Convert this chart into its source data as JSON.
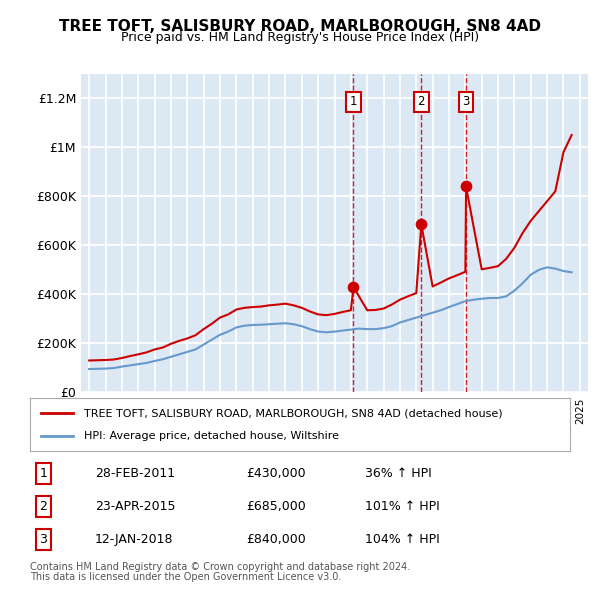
{
  "title": "TREE TOFT, SALISBURY ROAD, MARLBOROUGH, SN8 4AD",
  "subtitle": "Price paid vs. HM Land Registry's House Price Index (HPI)",
  "legend_line1": "TREE TOFT, SALISBURY ROAD, MARLBOROUGH, SN8 4AD (detached house)",
  "legend_line2": "HPI: Average price, detached house, Wiltshire",
  "footer1": "Contains HM Land Registry data © Crown copyright and database right 2024.",
  "footer2": "This data is licensed under the Open Government Licence v3.0.",
  "sales": [
    {
      "num": 1,
      "date": "28-FEB-2011",
      "price": "£430,000",
      "change": "36% ↑ HPI",
      "year": 2011.16
    },
    {
      "num": 2,
      "date": "23-APR-2015",
      "price": "£685,000",
      "change": "101% ↑ HPI",
      "year": 2015.31
    },
    {
      "num": 3,
      "date": "12-JAN-2018",
      "price": "£840,000",
      "change": "104% ↑ HPI",
      "year": 2018.04
    }
  ],
  "sale_values": [
    430000,
    685000,
    840000
  ],
  "ylim": [
    0,
    1300000
  ],
  "xlim": [
    1994.5,
    2025.5
  ],
  "plot_bg": "#dce9f5",
  "grid_color": "#ffffff",
  "red_color": "#cc0000",
  "blue_color": "#6699cc",
  "hpi_years": [
    1995,
    1995.5,
    1996,
    1996.5,
    1997,
    1997.5,
    1998,
    1998.5,
    1999,
    1999.5,
    2000,
    2000.5,
    2001,
    2001.5,
    2002,
    2002.5,
    2003,
    2003.5,
    2004,
    2004.5,
    2005,
    2005.5,
    2006,
    2006.5,
    2007,
    2007.5,
    2008,
    2008.5,
    2009,
    2009.5,
    2010,
    2010.5,
    2011,
    2011.5,
    2012,
    2012.5,
    2013,
    2013.5,
    2014,
    2014.5,
    2015,
    2015.5,
    2016,
    2016.5,
    2017,
    2017.5,
    2018,
    2018.5,
    2019,
    2019.5,
    2020,
    2020.5,
    2021,
    2021.5,
    2022,
    2022.5,
    2023,
    2023.5,
    2024,
    2024.5
  ],
  "hpi_values": [
    95000,
    96000,
    97000,
    99000,
    105000,
    110000,
    115000,
    120000,
    128000,
    135000,
    145000,
    155000,
    165000,
    175000,
    195000,
    215000,
    235000,
    248000,
    265000,
    272000,
    275000,
    276000,
    278000,
    280000,
    282000,
    278000,
    270000,
    258000,
    248000,
    245000,
    248000,
    252000,
    256000,
    260000,
    258000,
    258000,
    262000,
    270000,
    285000,
    295000,
    305000,
    315000,
    325000,
    335000,
    348000,
    360000,
    372000,
    378000,
    382000,
    385000,
    385000,
    392000,
    415000,
    445000,
    480000,
    500000,
    510000,
    505000,
    495000,
    490000
  ],
  "prop_years": [
    1995,
    1995.5,
    1996,
    1996.5,
    1997,
    1997.5,
    1998,
    1998.5,
    1999,
    1999.5,
    2000,
    2000.5,
    2001,
    2001.5,
    2002,
    2002.5,
    2003,
    2003.5,
    2004,
    2004.5,
    2005,
    2005.5,
    2006,
    2006.5,
    2007,
    2007.5,
    2008,
    2008.5,
    2009,
    2009.5,
    2010,
    2010.5,
    2011,
    2011.16,
    2012,
    2012.5,
    2013,
    2013.5,
    2014,
    2014.5,
    2015,
    2015.31,
    2016,
    2016.5,
    2017,
    2017.5,
    2018,
    2018.04,
    2019,
    2019.5,
    2020,
    2020.5,
    2021,
    2021.5,
    2022,
    2022.5,
    2023,
    2023.5,
    2024,
    2024.5
  ],
  "prop_values": [
    130000,
    131000,
    132000,
    134000,
    140000,
    148000,
    155000,
    163000,
    175000,
    183000,
    198000,
    210000,
    220000,
    233000,
    258000,
    280000,
    305000,
    318000,
    338000,
    345000,
    348000,
    350000,
    355000,
    358000,
    362000,
    355000,
    345000,
    330000,
    318000,
    315000,
    320000,
    328000,
    335000,
    430000,
    335000,
    336000,
    342000,
    358000,
    378000,
    392000,
    405000,
    685000,
    432000,
    448000,
    465000,
    478000,
    492000,
    840000,
    502000,
    508000,
    515000,
    545000,
    590000,
    650000,
    700000,
    740000,
    780000,
    820000,
    980000,
    1050000
  ]
}
